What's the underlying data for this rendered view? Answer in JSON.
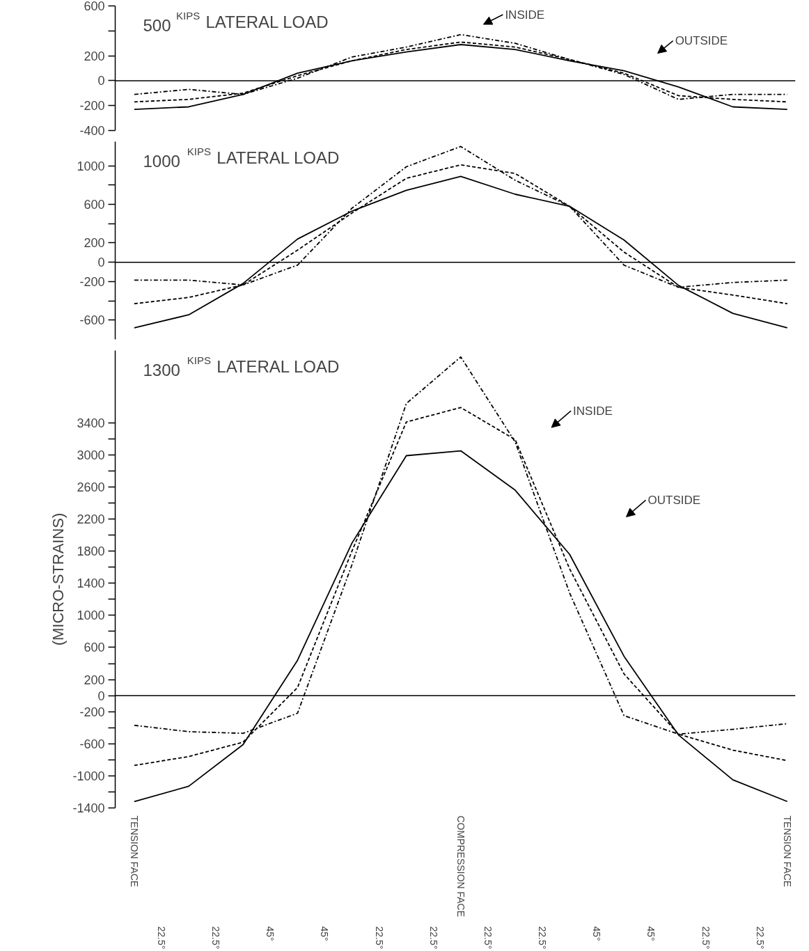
{
  "chart_data": [
    {
      "type": "line",
      "title": "500$^{KIPS}$ LATERAL LOAD",
      "categories": [
        null,
        null,
        null,
        null,
        null,
        null,
        null,
        null,
        null,
        null,
        null,
        null,
        null
      ],
      "series": [
        {
          "color": "#000000",
          "line_style": "solid",
          "values": [
            -230,
            -210,
            -110,
            60,
            160,
            230,
            290,
            250,
            160,
            80,
            -50,
            -210,
            -230
          ]
        },
        {
          "color": "#000000",
          "line_style": "dashed",
          "values": [
            -170,
            -150,
            -100,
            40,
            160,
            250,
            310,
            270,
            170,
            60,
            -120,
            -150,
            -170
          ]
        },
        {
          "color": "#000000",
          "line_style": "dashdot",
          "values": [
            -110,
            -70,
            -110,
            20,
            190,
            270,
            370,
            300,
            170,
            50,
            -150,
            -110,
            -110
          ]
        }
      ],
      "ylim": [
        -400,
        600
      ],
      "yticks": [
        -400,
        -200,
        0,
        200,
        600
      ],
      "ref_lines": [
        {
          "axis": "y",
          "value": 0
        }
      ],
      "grid": false,
      "marker": "none",
      "annotations": [
        "INSIDE",
        "OUTSIDE"
      ]
    },
    {
      "type": "line",
      "title": "1000$^{KIPS}$ LATERAL LOAD",
      "categories": [
        null,
        null,
        null,
        null,
        null,
        null,
        null,
        null,
        null,
        null,
        null,
        null,
        null
      ],
      "series": [
        {
          "color": "#000000",
          "line_style": "solid",
          "values": [
            -680,
            -545,
            -220,
            240,
            530,
            745,
            890,
            705,
            580,
            230,
            -240,
            -530,
            -680
          ]
        },
        {
          "color": "#000000",
          "line_style": "dashed",
          "values": [
            -430,
            -365,
            -235,
            125,
            510,
            870,
            1010,
            920,
            580,
            105,
            -260,
            -340,
            -430
          ]
        },
        {
          "color": "#000000",
          "line_style": "dashdot",
          "values": [
            -185,
            -185,
            -235,
            -30,
            560,
            990,
            1200,
            850,
            580,
            -30,
            -260,
            -210,
            -185
          ]
        }
      ],
      "ylim": [
        -800,
        1250
      ],
      "yticks": [
        -600,
        -200,
        0,
        200,
        600,
        1000
      ],
      "ref_lines": [
        {
          "axis": "y",
          "value": 0
        }
      ],
      "grid": false,
      "marker": "none"
    },
    {
      "type": "line",
      "title": "1300$^{KIPS}$ LATERAL LOAD",
      "ylabel": "(MICRO-STRAINS)",
      "categories": [
        "TENSION FACE",
        null,
        null,
        null,
        null,
        null,
        "COMPRESSION FACE",
        null,
        null,
        null,
        null,
        null,
        "TENSION FACE"
      ],
      "series": [
        {
          "color": "#000000",
          "line_style": "solid",
          "values": [
            -1320,
            -1130,
            -610,
            440,
            1900,
            2990,
            3050,
            2560,
            1760,
            490,
            -490,
            -1050,
            -1320
          ]
        },
        {
          "color": "#000000",
          "line_style": "dashed",
          "values": [
            -870,
            -760,
            -580,
            100,
            1800,
            3410,
            3590,
            3190,
            1580,
            270,
            -480,
            -680,
            -810
          ]
        },
        {
          "color": "#000000",
          "line_style": "dashdot",
          "values": [
            -370,
            -450,
            -470,
            -220,
            1630,
            3640,
            4220,
            3160,
            1280,
            -250,
            -480,
            -420,
            -350
          ]
        }
      ],
      "ylim": [
        -1400,
        4300
      ],
      "yticks": [
        -1400,
        -1000,
        -600,
        -200,
        0,
        200,
        600,
        1000,
        1400,
        1800,
        2200,
        2600,
        3000,
        3400
      ],
      "ref_lines": [
        {
          "axis": "y",
          "value": 0
        }
      ],
      "grid": false,
      "marker": "none",
      "annotations": [
        "INSIDE",
        "OUTSIDE",
        "22.5°",
        "22.5°",
        "45°",
        "45°",
        "22.5°",
        "22.5°",
        "22.5°",
        "22.5°",
        "45°",
        "45°",
        "22.5°",
        "22.5°"
      ]
    }
  ]
}
